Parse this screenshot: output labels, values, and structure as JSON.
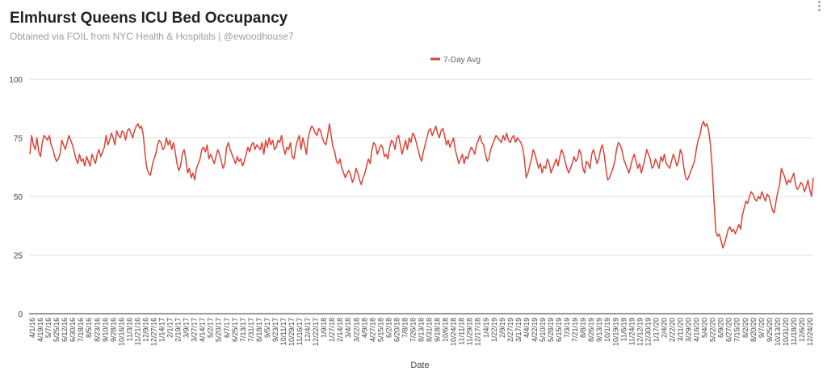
{
  "chart_data": {
    "type": "line",
    "title": "Elmhurst Queens ICU Bed Occupancy",
    "subtitle": "Obtained via FOIL from NYC Health & Hospitals | @ewoodhouse7",
    "xlabel": "Date",
    "ylabel": "",
    "ylim": [
      0,
      100
    ],
    "yticks": [
      0,
      25,
      50,
      75,
      100
    ],
    "grid": true,
    "legend_position": "top-center",
    "x_tick_labels": [
      "4/1/16",
      "4/19/16",
      "5/7/16",
      "5/25/16",
      "6/12/16",
      "6/30/16",
      "7/18/16",
      "8/5/16",
      "8/23/16",
      "9/10/16",
      "9/28/16",
      "10/16/16",
      "11/3/16",
      "11/21/16",
      "12/9/16",
      "12/27/16",
      "1/14/17",
      "2/1/17",
      "2/19/17",
      "3/9/17",
      "3/27/17",
      "4/14/17",
      "5/2/17",
      "5/20/17",
      "6/7/17",
      "6/25/17",
      "7/13/17",
      "7/31/17",
      "8/18/17",
      "9/5/17",
      "9/23/17",
      "10/11/17",
      "10/29/17",
      "11/16/17",
      "12/4/17",
      "12/22/17",
      "1/9/18",
      "1/27/18",
      "2/14/18",
      "3/4/18",
      "3/22/18",
      "4/9/18",
      "4/27/18",
      "5/15/18",
      "6/2/18",
      "6/20/18",
      "7/8/18",
      "7/26/18",
      "8/13/18",
      "8/31/18",
      "9/18/18",
      "10/6/18",
      "10/24/18",
      "11/11/18",
      "11/29/18",
      "12/17/18",
      "1/4/19",
      "1/22/19",
      "2/9/19",
      "2/27/19",
      "3/17/19",
      "4/4/19",
      "4/22/19",
      "5/10/19",
      "5/28/19",
      "6/15/19",
      "7/3/19",
      "7/21/19",
      "8/8/19",
      "8/26/19",
      "9/13/19",
      "10/1/19",
      "10/19/19",
      "11/6/19",
      "11/24/19",
      "12/12/19",
      "12/30/19",
      "1/17/20",
      "2/4/20",
      "2/22/20",
      "3/11/20",
      "3/29/20",
      "4/16/20",
      "5/4/20",
      "5/22/20",
      "6/9/20",
      "6/27/20",
      "7/15/20",
      "8/2/20",
      "8/20/20",
      "9/7/20",
      "9/25/20",
      "10/13/20",
      "10/31/20",
      "11/18/20",
      "12/6/20",
      "12/24/20"
    ],
    "series": [
      {
        "name": "7-Day Avg",
        "color": "#db4437",
        "values": [
          68,
          76,
          72,
          70,
          75,
          69,
          67,
          73,
          76,
          75,
          74,
          76,
          72,
          70,
          67,
          65,
          66,
          68,
          74,
          72,
          70,
          73,
          76,
          74,
          72,
          69,
          66,
          64,
          68,
          65,
          66,
          63,
          67,
          65,
          63,
          68,
          66,
          64,
          68,
          70,
          67,
          69,
          71,
          76,
          72,
          74,
          77,
          75,
          72,
          78,
          76,
          75,
          78,
          77,
          74,
          78,
          79,
          77,
          75,
          78,
          80,
          81,
          79,
          80,
          76,
          68,
          62,
          60,
          59,
          63,
          66,
          68,
          72,
          74,
          73,
          70,
          71,
          75,
          72,
          74,
          70,
          73,
          69,
          64,
          61,
          63,
          68,
          70,
          66,
          60,
          62,
          58,
          60,
          57,
          62,
          64,
          66,
          70,
          71,
          69,
          72,
          66,
          68,
          66,
          64,
          67,
          70,
          68,
          65,
          62,
          64,
          71,
          73,
          70,
          68,
          66,
          64,
          67,
          65,
          66,
          63,
          65,
          68,
          71,
          69,
          72,
          73,
          70,
          72,
          71,
          70,
          73,
          68,
          74,
          71,
          75,
          72,
          74,
          70,
          71,
          74,
          73,
          76,
          71,
          68,
          71,
          70,
          73,
          67,
          66,
          71,
          74,
          76,
          70,
          75,
          72,
          68,
          75,
          78,
          80,
          79,
          77,
          76,
          79,
          78,
          75,
          73,
          72,
          76,
          81,
          76,
          71,
          69,
          65,
          64,
          66,
          62,
          60,
          58,
          60,
          61,
          59,
          56,
          58,
          62,
          60,
          57,
          55,
          58,
          60,
          63,
          66,
          64,
          70,
          73,
          72,
          68,
          70,
          72,
          71,
          67,
          68,
          66,
          71,
          74,
          73,
          70,
          75,
          76,
          72,
          68,
          71,
          74,
          70,
          75,
          73,
          77,
          76,
          73,
          70,
          67,
          65,
          69,
          72,
          75,
          78,
          79,
          76,
          78,
          80,
          77,
          75,
          78,
          79,
          76,
          72,
          74,
          71,
          73,
          75,
          70,
          67,
          64,
          66,
          68,
          64,
          67,
          66,
          69,
          71,
          70,
          68,
          72,
          74,
          76,
          73,
          72,
          68,
          65,
          66,
          70,
          72,
          74,
          76,
          75,
          74,
          73,
          76,
          74,
          77,
          74,
          73,
          75,
          76,
          73,
          75,
          74,
          73,
          71,
          66,
          58,
          60,
          63,
          66,
          70,
          68,
          65,
          62,
          64,
          60,
          63,
          62,
          66,
          64,
          60,
          62,
          64,
          66,
          63,
          67,
          70,
          68,
          65,
          62,
          60,
          62,
          64,
          67,
          65,
          66,
          70,
          68,
          62,
          60,
          65,
          64,
          62,
          68,
          70,
          67,
          64,
          66,
          70,
          72,
          68,
          62,
          57,
          58,
          60,
          62,
          65,
          70,
          73,
          72,
          70,
          66,
          64,
          62,
          60,
          63,
          66,
          68,
          65,
          62,
          64,
          60,
          63,
          66,
          70,
          68,
          66,
          62,
          63,
          66,
          64,
          62,
          67,
          65,
          68,
          64,
          63,
          62,
          65,
          68,
          66,
          63,
          65,
          70,
          68,
          62,
          58,
          57,
          59,
          61,
          63,
          65,
          70,
          74,
          76,
          80,
          82,
          80,
          81,
          78,
          72,
          62,
          48,
          35,
          33,
          34,
          31,
          28,
          30,
          33,
          36,
          37,
          35,
          36,
          34,
          36,
          38,
          36,
          42,
          45,
          48,
          47,
          50,
          52,
          51,
          49,
          48,
          50,
          49,
          52,
          50,
          48,
          51,
          50,
          47,
          44,
          43,
          48,
          52,
          55,
          62,
          60,
          58,
          55,
          57,
          56,
          58,
          60,
          55,
          53,
          54,
          56,
          55,
          52,
          54,
          57,
          53,
          50,
          58
        ]
      }
    ]
  }
}
